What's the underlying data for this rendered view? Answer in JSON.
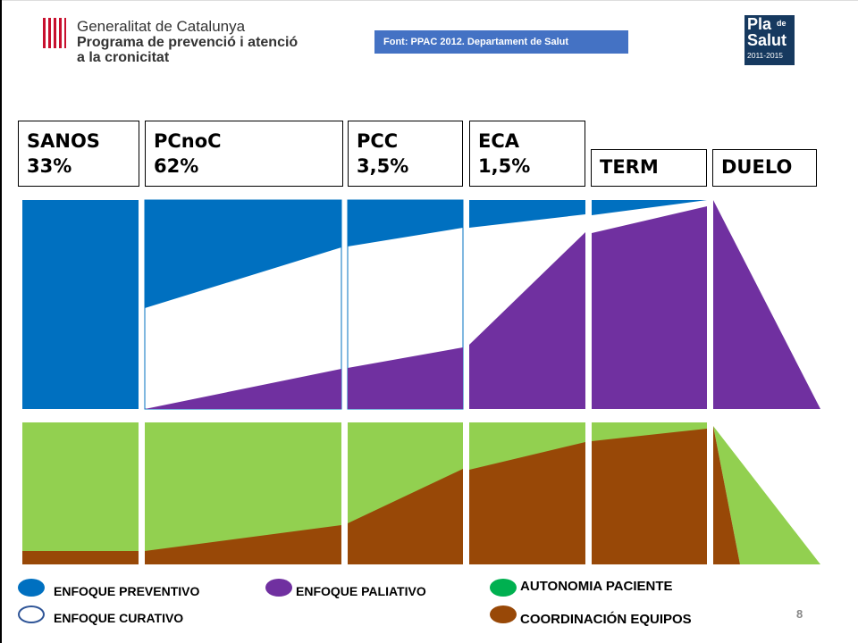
{
  "header": {
    "org_line1": "Generalitat de Catalunya",
    "org_line2": "Programa de prevenció i atenció",
    "org_line3": "a la cronicitat",
    "source": "Font: PPAC 2012. Departament de Salut",
    "plan_logo": {
      "pla": "Pla",
      "de": "de",
      "salut": "Salut",
      "years": "2011-2015"
    }
  },
  "stages": [
    {
      "name": "SANOS",
      "pct": "33%"
    },
    {
      "name": "PCnoC",
      "pct": "62%"
    },
    {
      "name": "PCC",
      "pct": "3,5%"
    },
    {
      "name": "ECA",
      "pct": "1,5%"
    },
    {
      "name": "TERM",
      "pct": ""
    },
    {
      "name": "DUELO",
      "pct": ""
    }
  ],
  "legend": {
    "preventive": "ENFOQUE PREVENTIVO",
    "palliative": "ENFOQUE PALIATIVO",
    "curative": "ENFOQUE CURATIVO",
    "autonomy": "AUTONOMIA PACIENTE",
    "coordination": "COORDINACIÓN  EQUIPOS"
  },
  "colors": {
    "preventive": "#0070c0",
    "palliative": "#7030a0",
    "curative": "#ffffff",
    "autonomy": "#92d050",
    "coordination": "#984807",
    "legend_autonomy": "#00b050",
    "source_box": "#4472c4"
  },
  "page_number": "8"
}
